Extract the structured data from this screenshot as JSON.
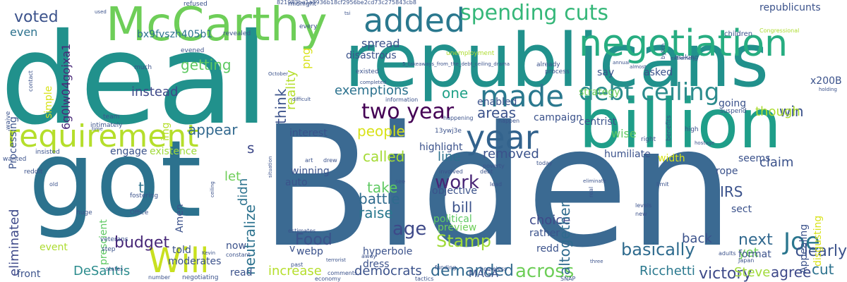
{
  "words": [
    {
      "text": "deal",
      "color": "#21918c"
    },
    {
      "text": "Biden",
      "color": "#3b6a92"
    },
    {
      "text": "got",
      "color": "#2c728e"
    },
    {
      "text": "republicans",
      "color": "#21918c"
    },
    {
      "text": "billion",
      "color": "#1f9e89"
    },
    {
      "text": "McCarthy",
      "color": "#6ece58"
    },
    {
      "text": "added",
      "color": "#2a788e"
    },
    {
      "text": "negotiation",
      "color": "#27ad81"
    },
    {
      "text": "requirement",
      "color": "#b5de2b"
    },
    {
      "text": "year",
      "color": "#33638d"
    },
    {
      "text": "made",
      "color": "#2a788e"
    },
    {
      "text": "Will",
      "color": "#c8e020"
    },
    {
      "text": "debt ceiling",
      "color": "#2c8c8d"
    },
    {
      "text": "spending cuts",
      "color": "#35b779"
    },
    {
      "text": "two year",
      "color": "#440154"
    },
    {
      "text": "Joe",
      "color": "#2a768e"
    },
    {
      "text": "voted",
      "color": "#3b528b"
    },
    {
      "text": "budget",
      "color": "#482878"
    },
    {
      "text": "Stamp",
      "color": "#a0da39"
    },
    {
      "text": "work",
      "color": "#482475"
    },
    {
      "text": "age",
      "color": "#3e4989"
    },
    {
      "text": "Food",
      "color": "#3b528b"
    },
    {
      "text": "demanded",
      "color": "#31688e"
    },
    {
      "text": "across",
      "color": "#6ece58"
    },
    {
      "text": "basically",
      "color": "#2f6b8e"
    },
    {
      "text": "victory",
      "color": "#3e4a89"
    },
    {
      "text": "IRS",
      "color": "#3b528b"
    },
    {
      "text": "next",
      "color": "#31688e"
    },
    {
      "text": "clearly",
      "color": "#3b528b"
    },
    {
      "text": "agree",
      "color": "#3e4989"
    },
    {
      "text": "cut",
      "color": "#2c728e"
    },
    {
      "text": "win",
      "color": "#3b528b"
    },
    {
      "text": "instead",
      "color": "#3e4989"
    },
    {
      "text": "getting",
      "color": "#5ec962"
    },
    {
      "text": "appear",
      "color": "#31688e"
    },
    {
      "text": "exemptions",
      "color": "#2c728e"
    },
    {
      "text": "areas",
      "color": "#3b528b"
    },
    {
      "text": "one",
      "color": "#1fa187"
    },
    {
      "text": "though",
      "color": "#addc30"
    },
    {
      "text": "people",
      "color": "#d8e219"
    },
    {
      "text": "called",
      "color": "#a5db36"
    },
    {
      "text": "removed",
      "color": "#3b528b"
    },
    {
      "text": "take",
      "color": "#5ec962"
    },
    {
      "text": "battle",
      "color": "#2f6b8e"
    },
    {
      "text": "raise",
      "color": "#2a788e"
    },
    {
      "text": "bill",
      "color": "#3b528b"
    },
    {
      "text": "choice",
      "color": "#3e4989"
    },
    {
      "text": "increase",
      "color": "#b5de2b"
    },
    {
      "text": "democrats",
      "color": "#3b528b"
    },
    {
      "text": "Ricchetti",
      "color": "#2a788e"
    },
    {
      "text": "Steve",
      "color": "#a0da39"
    },
    {
      "text": "DeSantis",
      "color": "#2c8c8d"
    },
    {
      "text": "eliminated",
      "color": "#3e4989"
    },
    {
      "text": "neutralize",
      "color": "#2c728e"
    },
    {
      "text": "altogether",
      "color": "#2f6b8e"
    },
    {
      "text": "yet",
      "color": "#6ece58"
    },
    {
      "text": "back",
      "color": "#3b528b"
    },
    {
      "text": "humiliate",
      "color": "#3b528b"
    },
    {
      "text": "claim",
      "color": "#3b528b"
    },
    {
      "text": "seems",
      "color": "#3b528b"
    },
    {
      "text": "think",
      "color": "#3b528b"
    },
    {
      "text": "reality",
      "color": "#b5de2b"
    },
    {
      "text": "even",
      "color": "#2c728e"
    },
    {
      "text": "let",
      "color": "#6ece58"
    },
    {
      "text": "didn",
      "color": "#2c728e"
    },
    {
      "text": "t",
      "color": "#2c728e"
    },
    {
      "text": "s",
      "color": "#3e4989"
    },
    {
      "text": "Amen",
      "color": "#3b528b"
    },
    {
      "text": "Appealing",
      "color": "#3b528b"
    },
    {
      "text": "disgusting",
      "color": "#d8e219"
    },
    {
      "text": "MAGA",
      "color": "#3b528b"
    },
    {
      "text": "line",
      "color": "#2c728e"
    },
    {
      "text": "img",
      "color": "#b5de2b"
    },
    {
      "text": "png",
      "color": "#d8e219"
    },
    {
      "text": "x200B",
      "color": "#3b528b"
    },
    {
      "text": "bx9fvszh405b1",
      "color": "#2c728e"
    },
    {
      "text": "6g0lw04gojxa1",
      "color": "#482878"
    },
    {
      "text": "Processing",
      "color": "#3b528b"
    },
    {
      "text": "simple",
      "color": "#d8e219"
    },
    {
      "text": "prescient",
      "color": "#5ec962"
    },
    {
      "text": "moderates",
      "color": "#3b528b"
    },
    {
      "text": "spread",
      "color": "#3b528b"
    },
    {
      "text": "disastrous",
      "color": "#3b528b"
    },
    {
      "text": "republicunts",
      "color": "#3b528b"
    },
    {
      "text": "rope",
      "color": "#3b528b"
    },
    {
      "text": "wise",
      "color": "#5ec962"
    },
    {
      "text": "centrist",
      "color": "#3b528b"
    },
    {
      "text": "strategy",
      "color": "#6ece58"
    },
    {
      "text": "campaign",
      "color": "#3b528b"
    },
    {
      "text": "highlight",
      "color": "#3b528b"
    },
    {
      "text": "interest",
      "color": "#3b528b"
    },
    {
      "text": "winning",
      "color": "#3b528b"
    },
    {
      "text": "auto",
      "color": "#3b528b"
    },
    {
      "text": "objective",
      "color": "#3b528b"
    },
    {
      "text": "political",
      "color": "#5ec962"
    },
    {
      "text": "preview",
      "color": "#6ece58"
    },
    {
      "text": "rather",
      "color": "#3b528b"
    },
    {
      "text": "redd",
      "color": "#3b528b"
    },
    {
      "text": "hyperbole",
      "color": "#3b528b"
    },
    {
      "text": "webp",
      "color": "#3b528b"
    },
    {
      "text": "v",
      "color": "#3b528b"
    },
    {
      "text": "dress",
      "color": "#3b528b"
    },
    {
      "text": "told",
      "color": "#3b528b"
    },
    {
      "text": "now",
      "color": "#3b528b"
    },
    {
      "text": "read",
      "color": "#3b528b"
    },
    {
      "text": "event",
      "color": "#addc30"
    },
    {
      "text": "front",
      "color": "#3b528b"
    },
    {
      "text": "engage",
      "color": "#3b528b"
    },
    {
      "text": "existence",
      "color": "#a0da39"
    },
    {
      "text": "enabled",
      "color": "#3b528b"
    },
    {
      "text": "say",
      "color": "#3b528b"
    },
    {
      "text": "asked",
      "color": "#3b528b"
    },
    {
      "text": "sect",
      "color": "#3b528b"
    },
    {
      "text": "format",
      "color": "#3b528b"
    },
    {
      "text": "width",
      "color": "#d8e219"
    },
    {
      "text": "going",
      "color": "#3b528b"
    },
    {
      "text": "Congressional",
      "color": "#addc30"
    },
    {
      "text": "children",
      "color": "#3b528b"
    },
    {
      "text": "refused",
      "color": "#3b528b"
    },
    {
      "text": "midnight",
      "color": "#3b528b"
    },
    {
      "text": "821983ba1a8936b18cf2956be2cd73c275843cb8",
      "color": "#3b528b"
    },
    {
      "text": "revealed",
      "color": "#3b528b"
    },
    {
      "text": "every",
      "color": "#3b528b"
    },
    {
      "text": "unemployment",
      "color": "#addc30"
    },
    {
      "text": "existed",
      "color": "#3b528b"
    },
    {
      "text": "process",
      "color": "#3b528b"
    },
    {
      "text": "already",
      "color": "#3b528b"
    },
    {
      "text": "happen",
      "color": "#3b528b"
    },
    {
      "text": "happening",
      "color": "#3b528b"
    },
    {
      "text": "information",
      "color": "#3b528b"
    },
    {
      "text": "13ywj3e",
      "color": "#3b528b"
    },
    {
      "text": "Office",
      "color": "#3b528b"
    },
    {
      "text": "fostering",
      "color": "#3b528b"
    },
    {
      "text": "huge",
      "color": "#3b528b"
    },
    {
      "text": "veterans",
      "color": "#3b528b"
    },
    {
      "text": "step",
      "color": "#3b528b"
    },
    {
      "text": "negotiating",
      "color": "#3b528b"
    },
    {
      "text": "states",
      "color": "#3b528b"
    },
    {
      "text": "number",
      "color": "#3b528b"
    },
    {
      "text": "economy",
      "color": "#3b528b"
    },
    {
      "text": "past",
      "color": "#3b528b"
    },
    {
      "text": "estimates",
      "color": "#3b528b"
    },
    {
      "text": "drew",
      "color": "#3b528b"
    },
    {
      "text": "art",
      "color": "#3b528b"
    },
    {
      "text": "poverty",
      "color": "#3b528b"
    },
    {
      "text": "lead",
      "color": "#3b528b"
    },
    {
      "text": "debt",
      "color": "#3b528b"
    },
    {
      "text": "today",
      "color": "#3b528b"
    },
    {
      "text": "limit",
      "color": "#3b528b"
    },
    {
      "text": "levels",
      "color": "#3b528b"
    },
    {
      "text": "new",
      "color": "#3b528b"
    },
    {
      "text": "SNAP",
      "color": "#3b528b"
    },
    {
      "text": "homeless",
      "color": "#3b528b"
    },
    {
      "text": "funding",
      "color": "#3b528b"
    },
    {
      "text": "tactics",
      "color": "#3b528b"
    },
    {
      "text": "comments",
      "color": "#3b528b"
    },
    {
      "text": "away",
      "color": "#3b528b"
    },
    {
      "text": "adults",
      "color": "#3b528b"
    },
    {
      "text": "Japan",
      "color": "#3b528b"
    },
    {
      "text": "insisted",
      "color": "#3b528b"
    },
    {
      "text": "wanted",
      "color": "#3b528b"
    },
    {
      "text": "reddit",
      "color": "#3b528b"
    },
    {
      "text": "team",
      "color": "#3b528b"
    },
    {
      "text": "intimately",
      "color": "#3b528b"
    },
    {
      "text": "time",
      "color": "#3b528b"
    },
    {
      "text": "waive",
      "color": "#3b528b"
    },
    {
      "text": "much",
      "color": "#3b528b"
    },
    {
      "text": "evened",
      "color": "#3b528b"
    },
    {
      "text": "contact",
      "color": "#3b528b"
    },
    {
      "text": "suspend",
      "color": "#3b528b"
    },
    {
      "text": "bytch",
      "color": "#3b528b"
    },
    {
      "text": "making",
      "color": "#3b528b"
    },
    {
      "text": "benefits",
      "color": "#3b528b"
    },
    {
      "text": "high",
      "color": "#3b528b"
    },
    {
      "text": "right",
      "color": "#3b528b"
    },
    {
      "text": "hostage",
      "color": "#3b528b"
    },
    {
      "text": "holding",
      "color": "#3b528b"
    },
    {
      "text": "used",
      "color": "#3b528b"
    },
    {
      "text": "tsi",
      "color": "#3b528b"
    },
    {
      "text": "completed",
      "color": "#3b528b"
    },
    {
      "text": "October",
      "color": "#3b528b"
    },
    {
      "text": "Kevin",
      "color": "#3b528b"
    },
    {
      "text": "real",
      "color": "#3b528b"
    },
    {
      "text": "eliminate",
      "color": "#3b528b"
    },
    {
      "text": "three",
      "color": "#3b528b"
    },
    {
      "text": "terrorist",
      "color": "#3b528b"
    },
    {
      "text": "constant",
      "color": "#3b528b"
    },
    {
      "text": "almost",
      "color": "#3b528b"
    },
    {
      "text": "annual",
      "color": "#3b528b"
    },
    {
      "text": "extremely",
      "color": "#3b528b"
    },
    {
      "text": "ceiling",
      "color": "#3b528b"
    },
    {
      "text": "situation",
      "color": "#3b528b"
    },
    {
      "text": "see",
      "color": "#3b528b"
    },
    {
      "text": "involved",
      "color": "#3b528b"
    },
    {
      "text": "old",
      "color": "#3b528b"
    },
    {
      "text": "difficult",
      "color": "#3b528b"
    },
    {
      "text": "5_takeaways_from_the_debt_ceiling_drama",
      "color": "#3b528b"
    }
  ]
}
